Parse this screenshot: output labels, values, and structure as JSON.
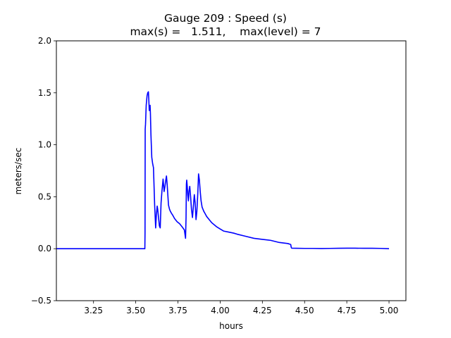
{
  "chart_data": {
    "type": "line",
    "title_line1": "Gauge 209 : Speed (s)",
    "title_line2": "max(s) =   1.511,    max(level) = 7",
    "xlabel": "hours",
    "ylabel": "meters/sec",
    "xlim": [
      3.03,
      5.1
    ],
    "ylim": [
      -0.5,
      2.0
    ],
    "xticks": [
      3.25,
      3.5,
      3.75,
      4.0,
      4.25,
      4.5,
      4.75,
      5.0
    ],
    "xtick_labels": [
      "3.25",
      "3.50",
      "3.75",
      "4.00",
      "4.25",
      "4.50",
      "4.75",
      "5.00"
    ],
    "yticks": [
      -0.5,
      0.0,
      0.5,
      1.0,
      1.5,
      2.0
    ],
    "ytick_labels": [
      "−0.5",
      "0.0",
      "0.5",
      "1.0",
      "1.5",
      "2.0"
    ],
    "series_color": "#0000ff",
    "series": [
      {
        "x": [
          3.03,
          3.554,
          3.555,
          3.556,
          3.558,
          3.562,
          3.567,
          3.571,
          3.575,
          3.577,
          3.58,
          3.582,
          3.585,
          3.587,
          3.59,
          3.595,
          3.6,
          3.605,
          3.612,
          3.618,
          3.622,
          3.627,
          3.63,
          3.635,
          3.64,
          3.645,
          3.65,
          3.655,
          3.662,
          3.668,
          3.673,
          3.678,
          3.682,
          3.686,
          3.69,
          3.694,
          3.7,
          3.705,
          3.712,
          3.72,
          3.73,
          3.745,
          3.76,
          3.775,
          3.788,
          3.795,
          3.798,
          3.8,
          3.802,
          3.805,
          3.808,
          3.812,
          3.815,
          3.82,
          3.825,
          3.83,
          3.836,
          3.842,
          3.847,
          3.852,
          3.857,
          3.862,
          3.868,
          3.872,
          3.877,
          3.882,
          3.887,
          3.893,
          3.898,
          3.903,
          3.91,
          3.92,
          3.935,
          3.95,
          3.965,
          3.98,
          4.0,
          4.02,
          4.05,
          4.08,
          4.1,
          4.15,
          4.2,
          4.25,
          4.3,
          4.35,
          4.4,
          4.41,
          4.418,
          4.42,
          4.422,
          4.425,
          4.45,
          4.5,
          4.55,
          4.6,
          4.65,
          4.7,
          4.75,
          4.8,
          4.85,
          4.9,
          4.95,
          5.0
        ],
        "y": [
          0.0,
          0.0,
          0.15,
          1.15,
          1.2,
          1.38,
          1.47,
          1.5,
          1.51,
          1.45,
          1.33,
          1.36,
          1.38,
          1.3,
          1.1,
          0.88,
          0.82,
          0.78,
          0.42,
          0.2,
          0.32,
          0.41,
          0.38,
          0.3,
          0.22,
          0.2,
          0.44,
          0.55,
          0.67,
          0.55,
          0.6,
          0.66,
          0.7,
          0.62,
          0.52,
          0.42,
          0.38,
          0.36,
          0.34,
          0.32,
          0.29,
          0.26,
          0.24,
          0.21,
          0.18,
          0.1,
          0.3,
          0.62,
          0.66,
          0.6,
          0.52,
          0.46,
          0.55,
          0.6,
          0.5,
          0.38,
          0.3,
          0.42,
          0.52,
          0.44,
          0.28,
          0.36,
          0.55,
          0.72,
          0.66,
          0.55,
          0.46,
          0.4,
          0.38,
          0.36,
          0.34,
          0.31,
          0.28,
          0.25,
          0.23,
          0.21,
          0.19,
          0.17,
          0.16,
          0.15,
          0.14,
          0.12,
          0.1,
          0.09,
          0.08,
          0.06,
          0.05,
          0.045,
          0.04,
          0.02,
          0.008,
          0.005,
          0.004,
          0.003,
          0.003,
          0.002,
          0.003,
          0.004,
          0.005,
          0.005,
          0.004,
          0.004,
          0.003,
          0.0
        ]
      }
    ]
  }
}
